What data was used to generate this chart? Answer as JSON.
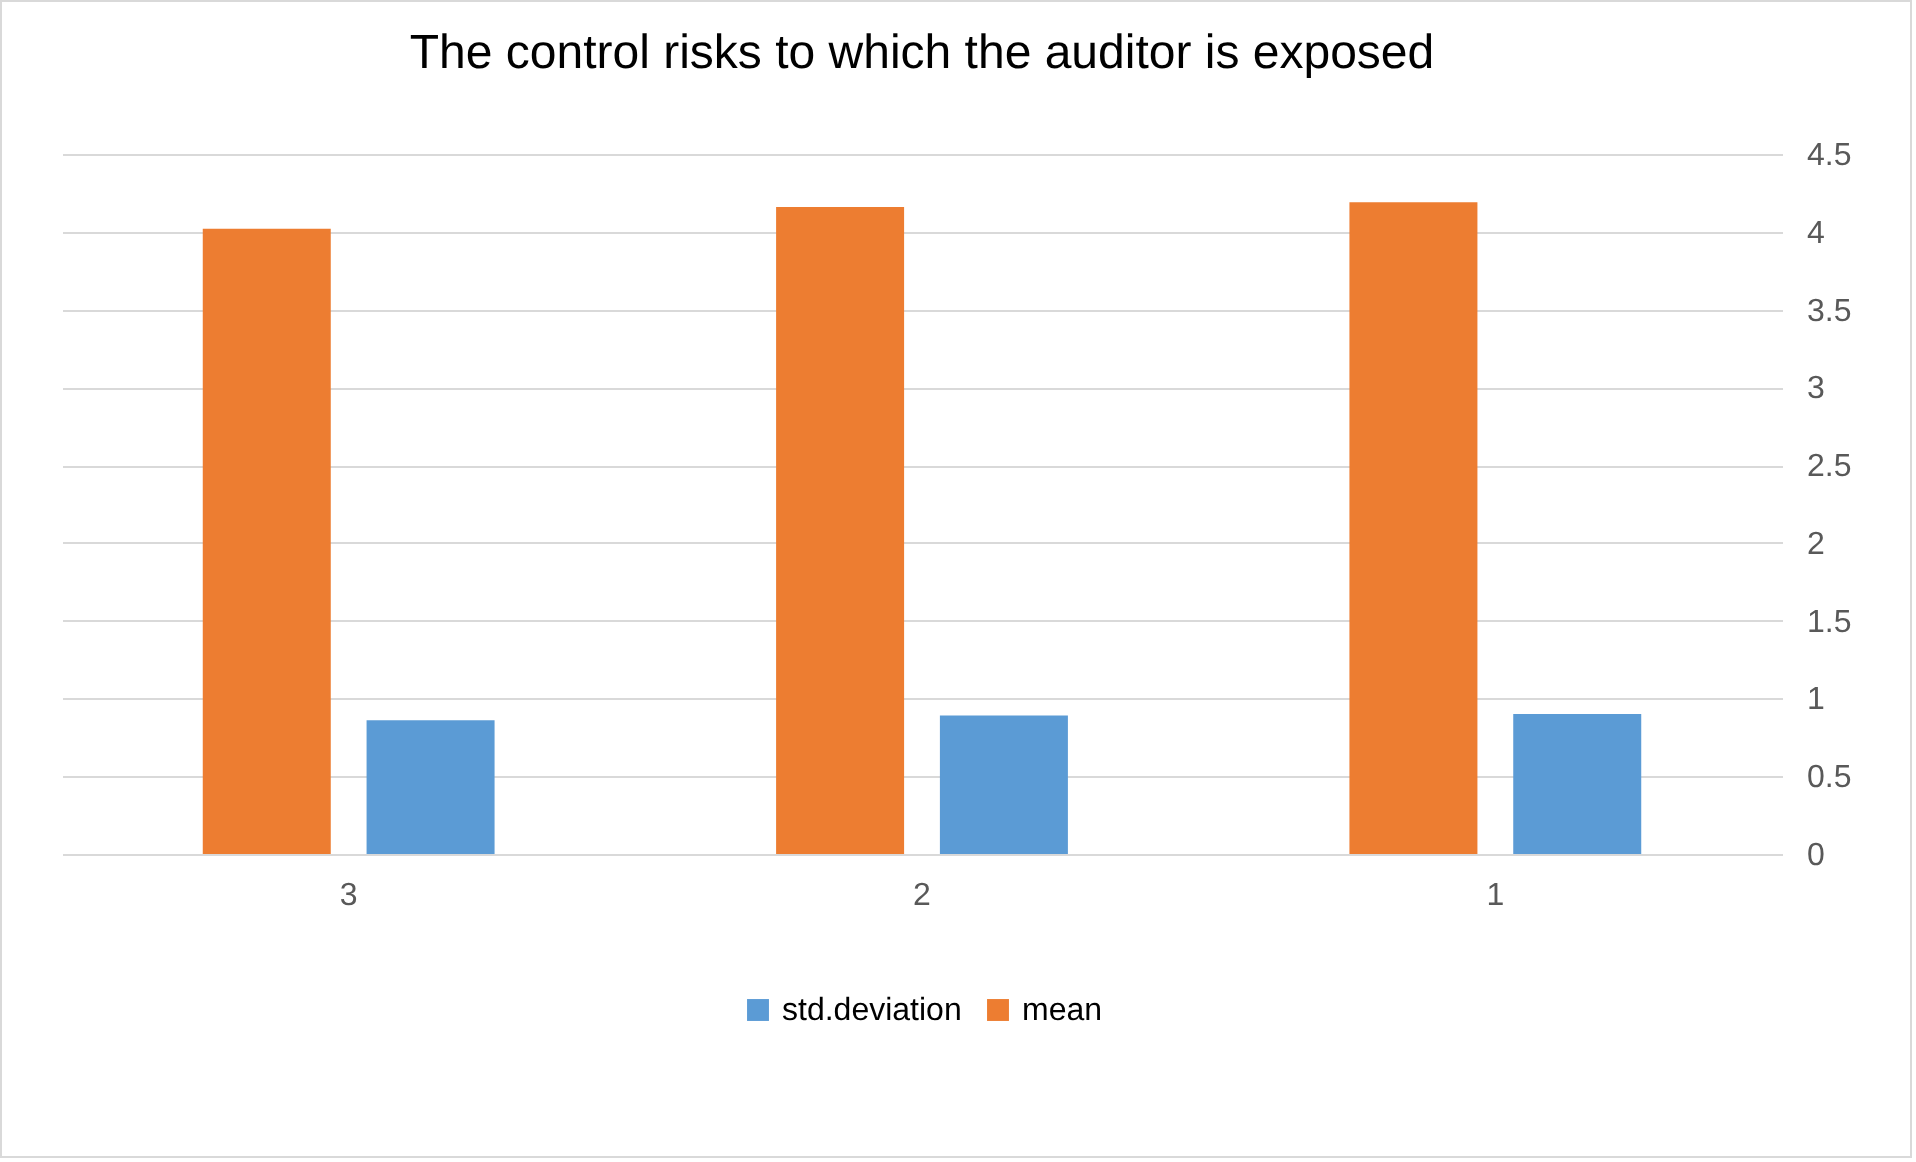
{
  "chart_data": {
    "type": "bar",
    "title": "The control risks to which the auditor is exposed",
    "categories": [
      "3",
      "2",
      "1"
    ],
    "series": [
      {
        "name": "mean",
        "color": "#ed7d31",
        "values": [
          4.02,
          4.16,
          4.19
        ]
      },
      {
        "name": "std.deviation",
        "color": "#5b9bd5",
        "values": [
          0.86,
          0.89,
          0.9
        ]
      }
    ],
    "ylim": [
      0,
      4.5
    ],
    "yticks": [
      0,
      0.5,
      1,
      1.5,
      2,
      2.5,
      3,
      3.5,
      4,
      4.5
    ],
    "grid": "y",
    "legend": "bottom"
  }
}
